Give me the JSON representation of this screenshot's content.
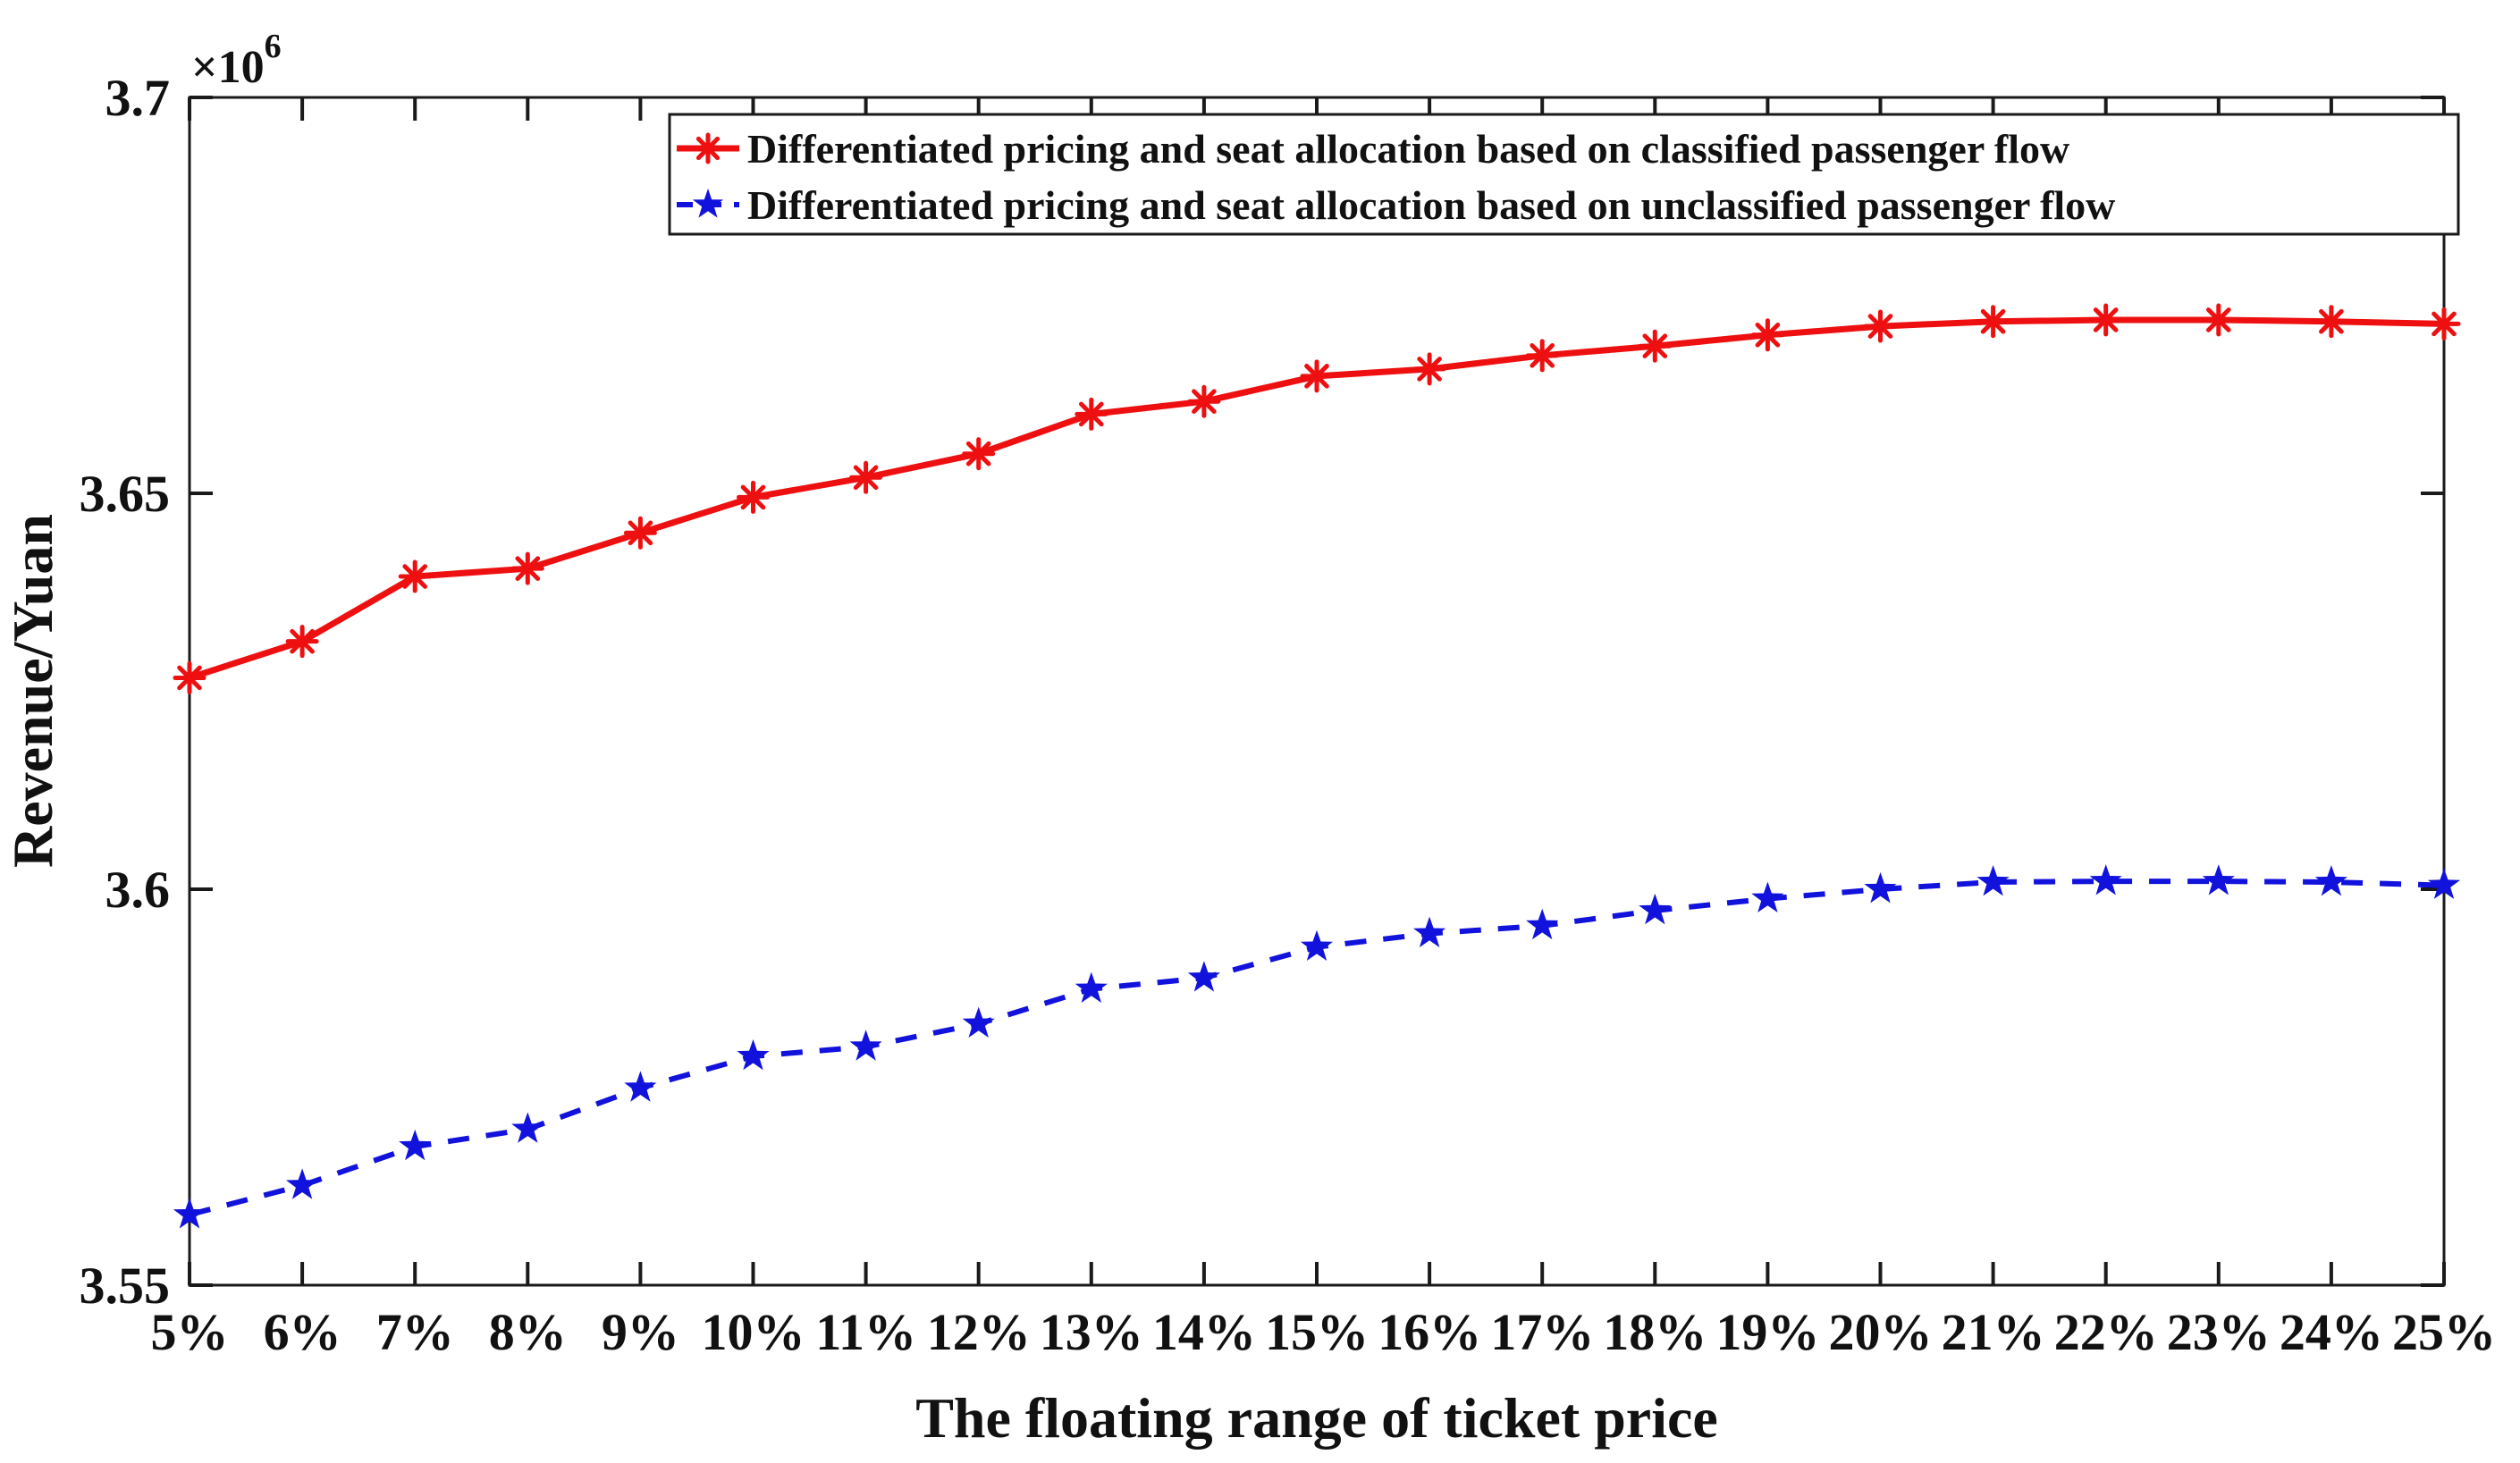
{
  "figure": {
    "background": "#ffffff",
    "axis_color": "#1a1a1a",
    "text_color": "#111111",
    "tick_length": 26
  },
  "chart_data": {
    "type": "line",
    "title": "",
    "xlabel": "The floating range of ticket price",
    "ylabel": "Revenue/Yuan",
    "y_offset": {
      "base": "×10",
      "exp": "6"
    },
    "unit": "Yuan",
    "grid": false,
    "legend_position": "top-inside",
    "categories": [
      "5%",
      "6%",
      "7%",
      "8%",
      "9%",
      "10%",
      "11%",
      "12%",
      "13%",
      "14%",
      "15%",
      "16%",
      "17%",
      "18%",
      "19%",
      "20%",
      "21%",
      "22%",
      "23%",
      "24%",
      "25%"
    ],
    "ylim": [
      3.55,
      3.7
    ],
    "y_ticks": [
      "3.55",
      "3.6",
      "3.65",
      "3.7"
    ],
    "series": [
      {
        "name": "Differentiated pricing and seat allocation based on classified passenger flow",
        "color": "#ee1010",
        "line_style": "solid",
        "marker": "asterisk",
        "values": [
          3.6267,
          3.6313,
          3.6395,
          3.6405,
          3.645,
          3.6495,
          3.652,
          3.655,
          3.66,
          3.6616,
          3.6648,
          3.6657,
          3.6674,
          3.6686,
          3.67,
          3.6711,
          3.6717,
          3.6719,
          3.6719,
          3.6717,
          3.6714
        ]
      },
      {
        "name": "Differentiated pricing and seat allocation based on unclassified passenger flow",
        "color": "#1212dd",
        "line_style": "dashed",
        "marker": "star",
        "values": [
          3.5589,
          3.5626,
          3.5675,
          3.5697,
          3.5749,
          3.5789,
          3.5801,
          3.583,
          3.5874,
          3.5888,
          3.5927,
          3.5944,
          3.5954,
          3.5973,
          3.5988,
          3.6,
          3.6009,
          3.601,
          3.601,
          3.6009,
          3.6005
        ]
      }
    ]
  }
}
